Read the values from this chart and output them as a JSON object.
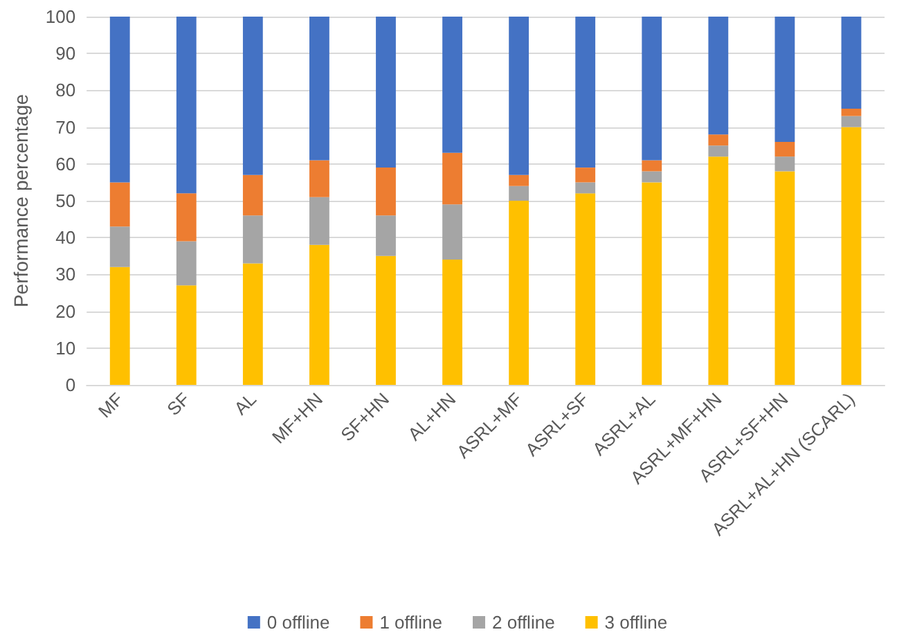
{
  "chart_data": {
    "type": "bar",
    "stacked": true,
    "ylabel": "Performance percentage",
    "categories": [
      "MF",
      "SF",
      "AL",
      "MF+HN",
      "SF+HN",
      "AL+HN",
      "ASRL+MF",
      "ASRL+SF",
      "ASRL+AL",
      "ASRL+MF+HN",
      "ASRL+SF+HN",
      "ASRL+AL+HN (SCARL)"
    ],
    "series": [
      {
        "name": "3 offline",
        "color": "#ffc000",
        "values": [
          32,
          27,
          33,
          38,
          35,
          34,
          50,
          52,
          55,
          62,
          58,
          70
        ]
      },
      {
        "name": "2 offline",
        "color": "#a5a5a5",
        "values": [
          11,
          12,
          13,
          13,
          11,
          15,
          4,
          3,
          3,
          3,
          4,
          3
        ]
      },
      {
        "name": "1 offline",
        "color": "#ed7d31",
        "values": [
          12,
          13,
          11,
          10,
          13,
          14,
          3,
          4,
          3,
          3,
          4,
          2
        ]
      },
      {
        "name": "0 offline",
        "color": "#4472c4",
        "values": [
          45,
          48,
          43,
          39,
          41,
          37,
          43,
          41,
          39,
          32,
          34,
          25
        ]
      }
    ],
    "ylim": [
      0,
      100
    ],
    "yticks": [
      0,
      10,
      20,
      30,
      40,
      50,
      60,
      70,
      80,
      90,
      100
    ],
    "grid": "y",
    "legend": "bottom"
  }
}
